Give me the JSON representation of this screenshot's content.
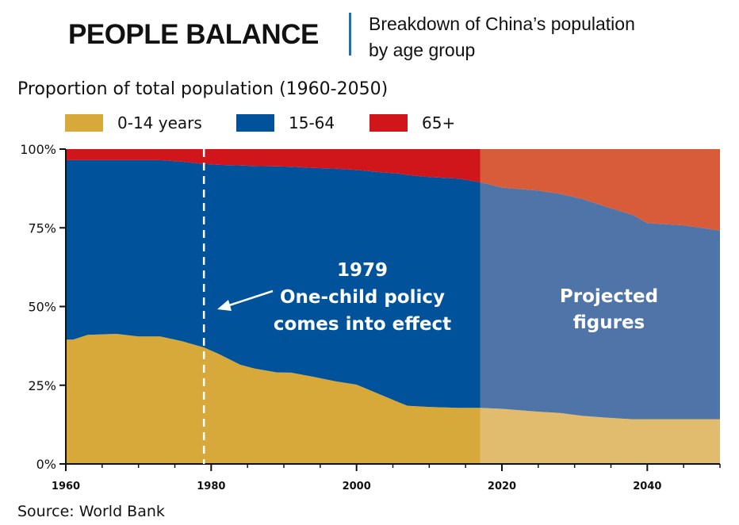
{
  "header": {
    "title": "PEOPLE BALANCE",
    "subtitle_line1": "Breakdown of China’s population",
    "subtitle_line2": "by age group"
  },
  "chart_heading": "Proportion of total population (1960-2050)",
  "legend": [
    {
      "label": "0-14 years",
      "color": "#d7a93a"
    },
    {
      "label": "15-64",
      "color": "#00529b"
    },
    {
      "label": "65+",
      "color": "#d0151b"
    }
  ],
  "source": "Source: World Bank",
  "colors": {
    "young": "#d7a93a",
    "working": "#00529b",
    "old": "#d0151b",
    "young_projected": "#e2bc6e",
    "working_projected": "#4f74a8",
    "old_projected": "#d95c3a",
    "axis": "#111111",
    "annotation_text": "#ffffff"
  },
  "annotations": {
    "policy": {
      "year": 1979,
      "line1": "1979",
      "line2": "One-child policy",
      "line3": "comes into effect"
    },
    "projected": {
      "start_year": 2017,
      "line1": "Projected",
      "line2": "figures"
    }
  },
  "chart_data": {
    "type": "area",
    "stacked": true,
    "title": "Proportion of total population (1960-2050)",
    "xlabel": "",
    "ylabel": "",
    "xlim": [
      1960,
      2050
    ],
    "ylim": [
      0,
      100
    ],
    "x_ticks": [
      "1960",
      "1980",
      "2000",
      "2020",
      "2040"
    ],
    "y_ticks": [
      "0%",
      "25%",
      "50%",
      "75%",
      "100%"
    ],
    "grid": false,
    "legend_position": "top-left",
    "x": [
      1960,
      1961,
      1963,
      1967,
      1970,
      1973,
      1976,
      1979,
      1981,
      1984,
      1986,
      1989,
      1991,
      1994,
      1997,
      2000,
      2003,
      2006,
      2007,
      2010,
      2014,
      2017,
      2020,
      2025,
      2028,
      2031,
      2035,
      2038,
      2040,
      2045,
      2050
    ],
    "series": [
      {
        "name": "0-14 years",
        "values": [
          39.5,
          39.5,
          41,
          41.3,
          40.5,
          40.5,
          39,
          37,
          35,
          31.5,
          30.3,
          29.1,
          29,
          27.7,
          26.3,
          25.2,
          22.3,
          19.4,
          18.5,
          18.1,
          17.8,
          17.8,
          17.5,
          16.6,
          16.2,
          15.3,
          14.6,
          14.2,
          14.2,
          14.2,
          14.2
        ]
      },
      {
        "name": "15-64",
        "values": [
          57,
          57,
          55.5,
          55.2,
          56,
          56,
          57,
          58.3,
          60,
          63.3,
          64.3,
          65.4,
          65.4,
          66.3,
          67.5,
          68.2,
          70.4,
          72.8,
          73.3,
          73,
          72.8,
          71.7,
          70.3,
          70.2,
          69.6,
          68.9,
          66.6,
          64.9,
          62.3,
          61.6,
          59.9
        ]
      },
      {
        "name": "65+",
        "values": [
          3.5,
          3.5,
          3.5,
          3.5,
          3.5,
          3.5,
          4,
          4.7,
          5,
          5.2,
          5.4,
          5.5,
          5.6,
          6,
          6.2,
          6.6,
          7.3,
          7.8,
          8.2,
          8.9,
          9.4,
          10.5,
          12.2,
          13.2,
          14.2,
          15.8,
          18.8,
          20.9,
          23.5,
          24.2,
          25.9
        ]
      }
    ],
    "projection_start": 2017
  }
}
